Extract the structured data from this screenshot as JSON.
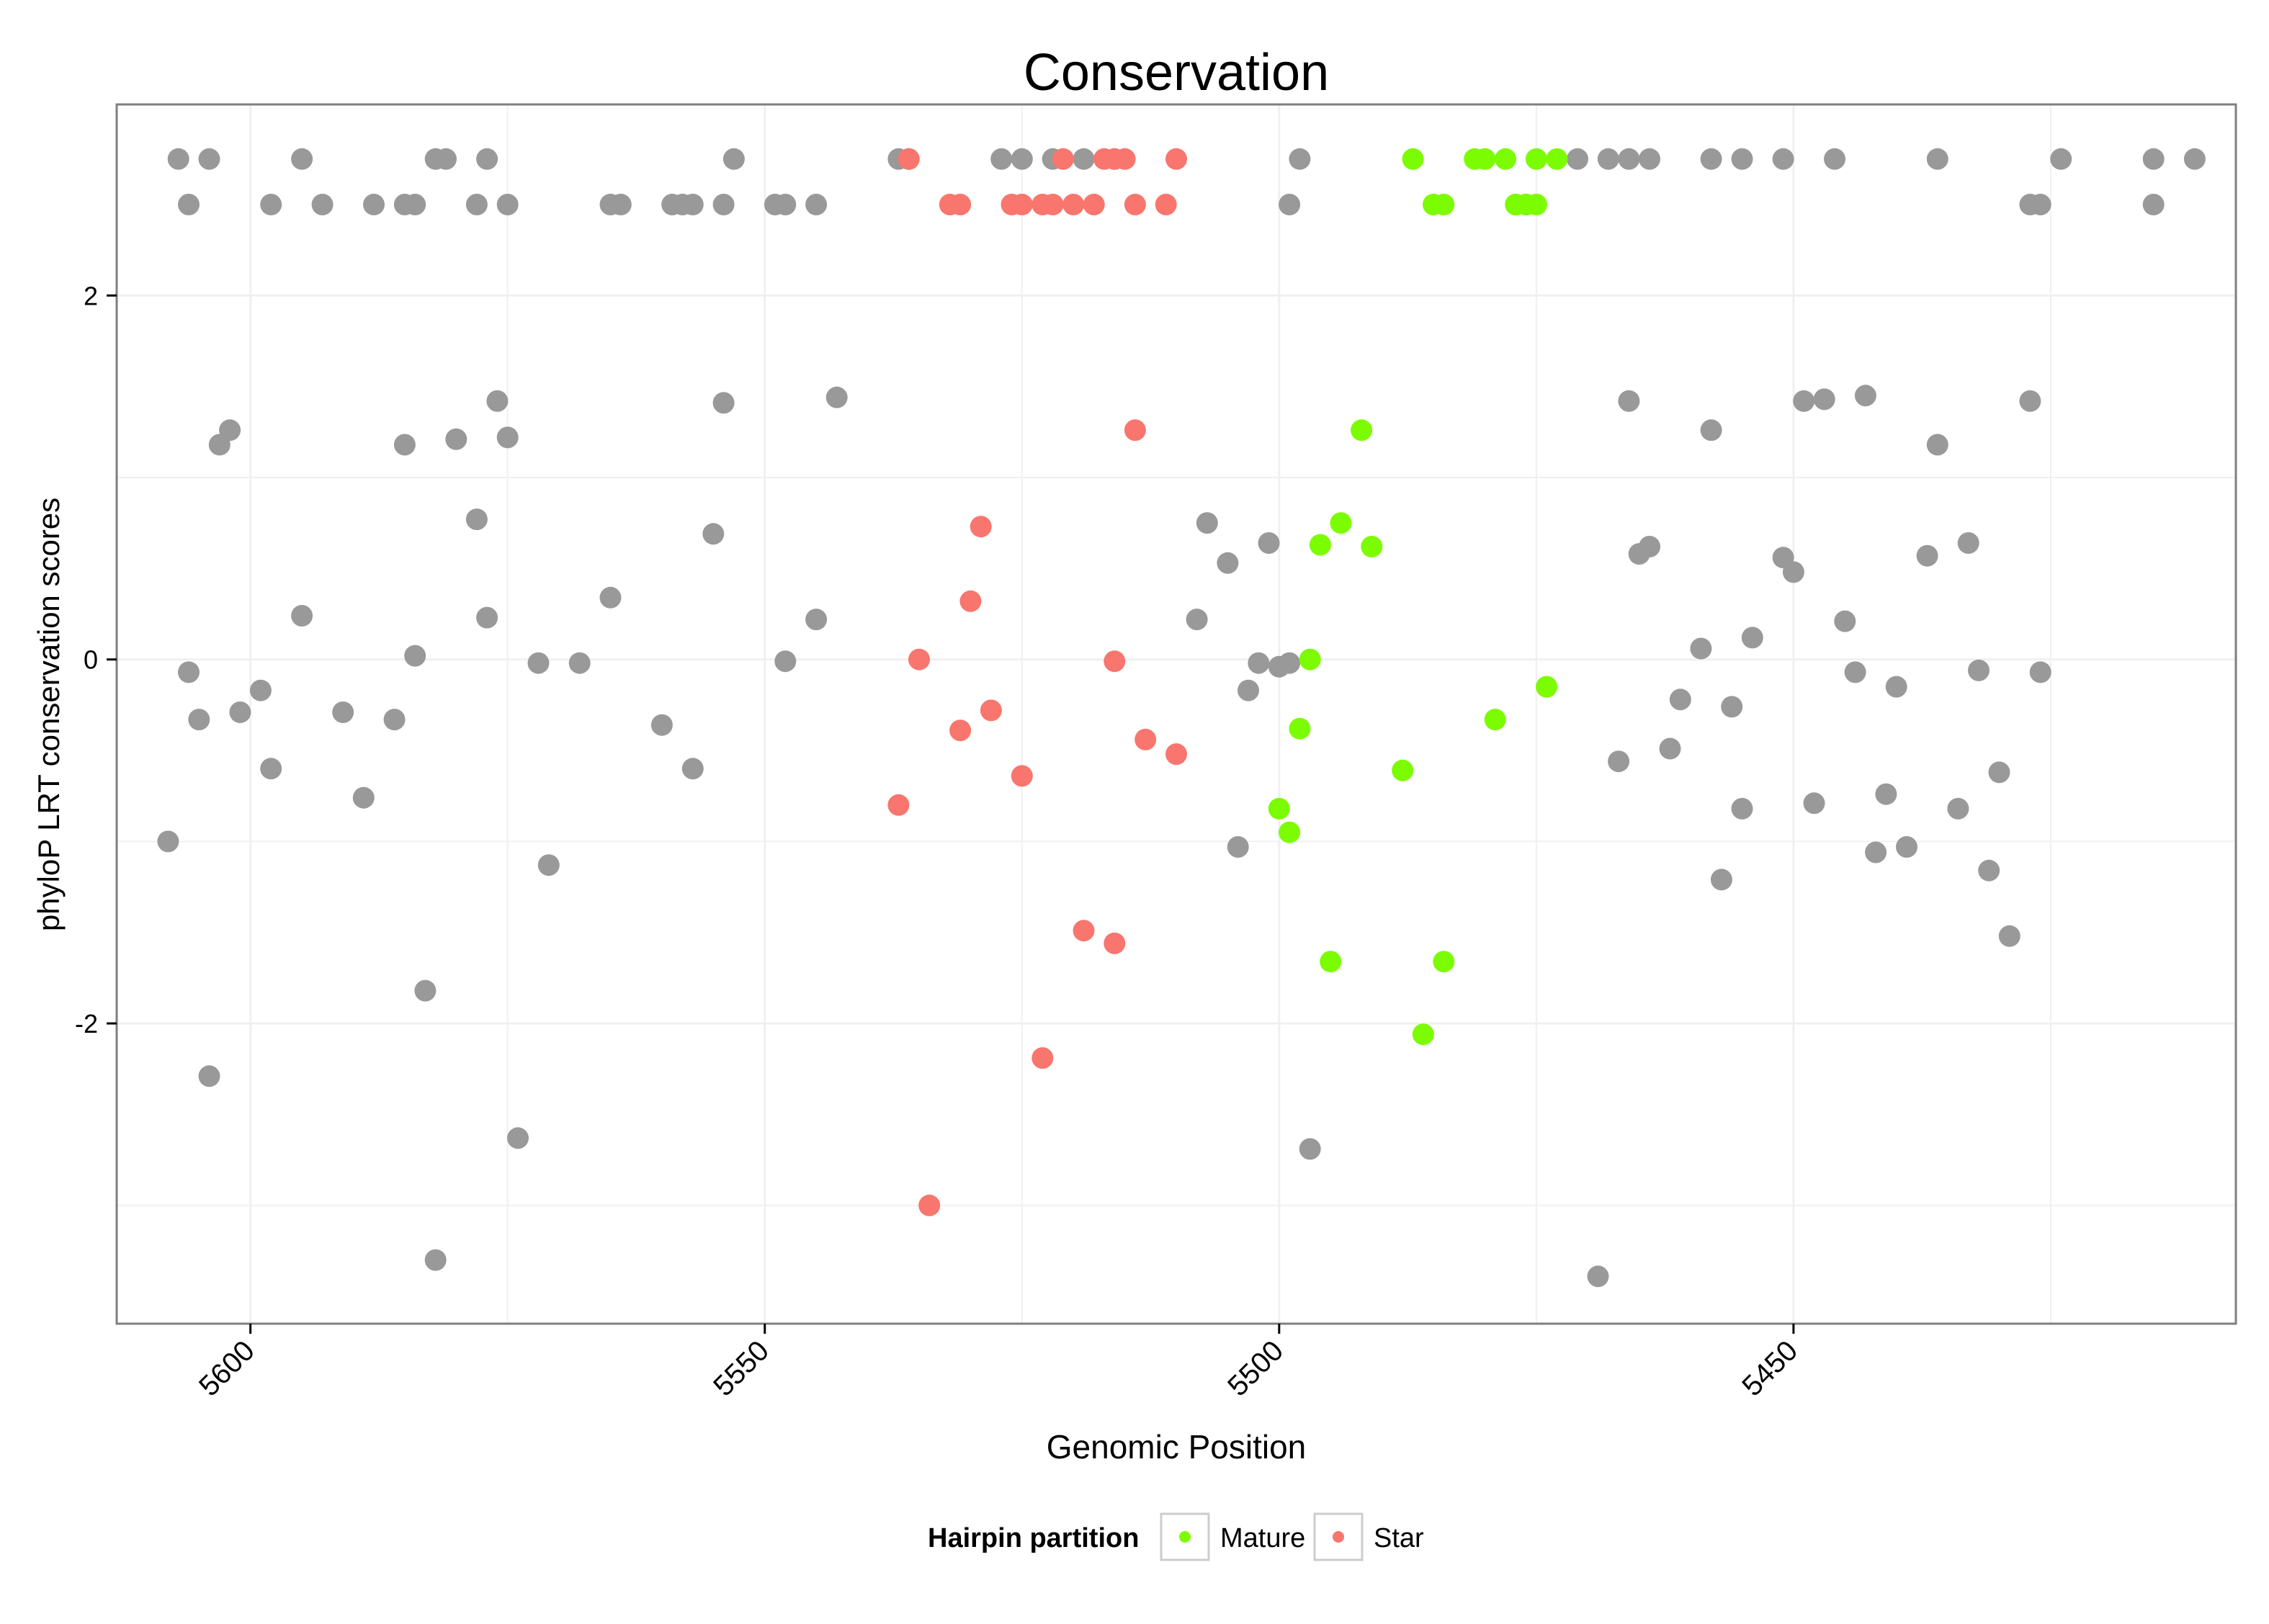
{
  "chart_data": {
    "type": "scatter",
    "title": "Conservation",
    "xlabel": "Genomic Position",
    "ylabel": "phyloP LRT conservation scores",
    "xlim": [
      5613,
      5407
    ],
    "x_reversed": true,
    "ylim": [
      -3.65,
      3.05
    ],
    "xticks": [
      5600,
      5550,
      5500,
      5450
    ],
    "xtick_labels": [
      "5600",
      "5550",
      "5500",
      "5450"
    ],
    "yticks": [
      2,
      0,
      -2
    ],
    "ytick_labels": [
      "2",
      "0",
      "-2"
    ],
    "grid": true,
    "legend": {
      "title": "Hairpin partition",
      "placement": "bottom",
      "entries": [
        {
          "label": "Mature",
          "color": "#7cfc00"
        },
        {
          "label": "Star",
          "color": "#f8766d"
        }
      ]
    },
    "colors": {
      "other": "#999999",
      "mature": "#7cfc00",
      "star": "#f8766d",
      "panel_border": "#7f7f7f",
      "grid": "#f0f0f0"
    },
    "series": [
      {
        "name": "",
        "color": "#999999",
        "points": [
          [
            5607,
            2.75
          ],
          [
            5604,
            2.75
          ],
          [
            5595,
            2.75
          ],
          [
            5582,
            2.75
          ],
          [
            5581,
            2.75
          ],
          [
            5577,
            2.75
          ],
          [
            5553,
            2.75
          ],
          [
            5537,
            2.75
          ],
          [
            5536,
            2.75
          ],
          [
            5527,
            2.75
          ],
          [
            5525,
            2.75
          ],
          [
            5522,
            2.75
          ],
          [
            5519,
            2.75
          ],
          [
            5516,
            2.75
          ],
          [
            5498,
            2.75
          ],
          [
            5471,
            2.75
          ],
          [
            5468,
            2.75
          ],
          [
            5466,
            2.75
          ],
          [
            5464,
            2.75
          ],
          [
            5458,
            2.75
          ],
          [
            5455,
            2.75
          ],
          [
            5451,
            2.75
          ],
          [
            5446,
            2.75
          ],
          [
            5436,
            2.75
          ],
          [
            5424,
            2.75
          ],
          [
            5415,
            2.75
          ],
          [
            5411,
            2.75
          ],
          [
            5606,
            2.5
          ],
          [
            5598,
            2.5
          ],
          [
            5593,
            2.5
          ],
          [
            5588,
            2.5
          ],
          [
            5585,
            2.5
          ],
          [
            5584,
            2.5
          ],
          [
            5578,
            2.5
          ],
          [
            5575,
            2.5
          ],
          [
            5565,
            2.5
          ],
          [
            5564,
            2.5
          ],
          [
            5559,
            2.5
          ],
          [
            5558,
            2.5
          ],
          [
            5557,
            2.5
          ],
          [
            5554,
            2.5
          ],
          [
            5549,
            2.5
          ],
          [
            5548,
            2.5
          ],
          [
            5545,
            2.5
          ],
          [
            5499,
            2.5
          ],
          [
            5477,
            2.5
          ],
          [
            5476,
            2.5
          ],
          [
            5427,
            2.5
          ],
          [
            5426,
            2.5
          ],
          [
            5415,
            2.5
          ],
          [
            5608,
            -1.0
          ],
          [
            5606,
            -0.07
          ],
          [
            5605,
            -0.33
          ],
          [
            5604,
            -2.29
          ],
          [
            5603,
            1.18
          ],
          [
            5602,
            1.26
          ],
          [
            5601,
            -0.29
          ],
          [
            5599,
            -0.17
          ],
          [
            5598,
            -0.6
          ],
          [
            5595,
            0.24
          ],
          [
            5591,
            -0.29
          ],
          [
            5589,
            -0.76
          ],
          [
            5586,
            -0.33
          ],
          [
            5585,
            1.18
          ],
          [
            5584,
            0.02
          ],
          [
            5583,
            -1.82
          ],
          [
            5582,
            -3.3
          ],
          [
            5580,
            1.21
          ],
          [
            5578,
            0.77
          ],
          [
            5577,
            0.23
          ],
          [
            5576,
            1.42
          ],
          [
            5575,
            1.22
          ],
          [
            5574,
            -2.63
          ],
          [
            5572,
            -0.02
          ],
          [
            5571,
            -1.13
          ],
          [
            5568,
            -0.02
          ],
          [
            5565,
            0.34
          ],
          [
            5560,
            -0.36
          ],
          [
            5557,
            -0.6
          ],
          [
            5555,
            0.69
          ],
          [
            5554,
            1.41
          ],
          [
            5548,
            -0.01
          ],
          [
            5545,
            0.22
          ],
          [
            5543,
            1.44
          ],
          [
            5508,
            0.22
          ],
          [
            5507,
            0.75
          ],
          [
            5505,
            0.53
          ],
          [
            5504,
            -1.03
          ],
          [
            5503,
            -0.17
          ],
          [
            5502,
            -0.02
          ],
          [
            5501,
            0.64
          ],
          [
            5500,
            -0.04
          ],
          [
            5499,
            -0.02
          ],
          [
            5497,
            -2.69
          ],
          [
            5469,
            -3.39
          ],
          [
            5467,
            -0.56
          ],
          [
            5466,
            1.42
          ],
          [
            5465,
            0.58
          ],
          [
            5464,
            0.62
          ],
          [
            5462,
            -0.49
          ],
          [
            5461,
            -0.22
          ],
          [
            5459,
            0.06
          ],
          [
            5458,
            1.26
          ],
          [
            5457,
            -1.21
          ],
          [
            5456,
            -0.26
          ],
          [
            5455,
            -0.82
          ],
          [
            5454,
            0.12
          ],
          [
            5451,
            0.56
          ],
          [
            5450,
            0.48
          ],
          [
            5449,
            1.42
          ],
          [
            5448,
            -0.79
          ],
          [
            5447,
            1.43
          ],
          [
            5445,
            0.21
          ],
          [
            5444,
            -0.07
          ],
          [
            5443,
            1.45
          ],
          [
            5442,
            -1.06
          ],
          [
            5441,
            -0.74
          ],
          [
            5440,
            -0.15
          ],
          [
            5439,
            -1.03
          ],
          [
            5437,
            0.57
          ],
          [
            5436,
            1.18
          ],
          [
            5434,
            -0.82
          ],
          [
            5433,
            0.64
          ],
          [
            5432,
            -0.06
          ],
          [
            5431,
            -1.16
          ],
          [
            5430,
            -0.62
          ],
          [
            5429,
            -1.52
          ],
          [
            5427,
            1.42
          ],
          [
            5426,
            -0.07
          ]
        ]
      },
      {
        "name": "Mature",
        "color": "#7cfc00",
        "points": [
          [
            5487,
            2.75
          ],
          [
            5481,
            2.75
          ],
          [
            5480,
            2.75
          ],
          [
            5478,
            2.75
          ],
          [
            5475,
            2.75
          ],
          [
            5473,
            2.75
          ],
          [
            5485,
            2.5
          ],
          [
            5484,
            2.5
          ],
          [
            5477,
            2.5
          ],
          [
            5476,
            2.5
          ],
          [
            5475,
            2.5
          ],
          [
            5492,
            1.26
          ],
          [
            5494,
            0.75
          ],
          [
            5496,
            0.63
          ],
          [
            5491,
            0.62
          ],
          [
            5497,
            0.0
          ],
          [
            5498,
            -0.38
          ],
          [
            5479,
            -0.33
          ],
          [
            5474,
            -0.15
          ],
          [
            5488,
            -0.61
          ],
          [
            5500,
            -0.82
          ],
          [
            5499,
            -0.95
          ],
          [
            5495,
            -1.66
          ],
          [
            5484,
            -1.66
          ],
          [
            5486,
            -2.06
          ]
        ]
      },
      {
        "name": "Star",
        "color": "#f8766d",
        "points": [
          [
            5536,
            2.75
          ],
          [
            5521,
            2.75
          ],
          [
            5517,
            2.75
          ],
          [
            5516,
            2.75
          ],
          [
            5515,
            2.75
          ],
          [
            5510,
            2.75
          ],
          [
            5532,
            2.5
          ],
          [
            5531,
            2.5
          ],
          [
            5526,
            2.5
          ],
          [
            5525,
            2.5
          ],
          [
            5523,
            2.5
          ],
          [
            5522,
            2.5
          ],
          [
            5520,
            2.5
          ],
          [
            5518,
            2.5
          ],
          [
            5514,
            2.5
          ],
          [
            5511,
            2.5
          ],
          [
            5514,
            1.26
          ],
          [
            5529,
            0.73
          ],
          [
            5530,
            0.32
          ],
          [
            5535,
            0.0
          ],
          [
            5516,
            -0.01
          ],
          [
            5528,
            -0.28
          ],
          [
            5531,
            -0.39
          ],
          [
            5513,
            -0.44
          ],
          [
            5510,
            -0.52
          ],
          [
            5525,
            -0.64
          ],
          [
            5537,
            -0.8
          ],
          [
            5519,
            -1.49
          ],
          [
            5516,
            -1.56
          ],
          [
            5523,
            -2.19
          ],
          [
            5534,
            -3.0
          ]
        ]
      }
    ]
  }
}
